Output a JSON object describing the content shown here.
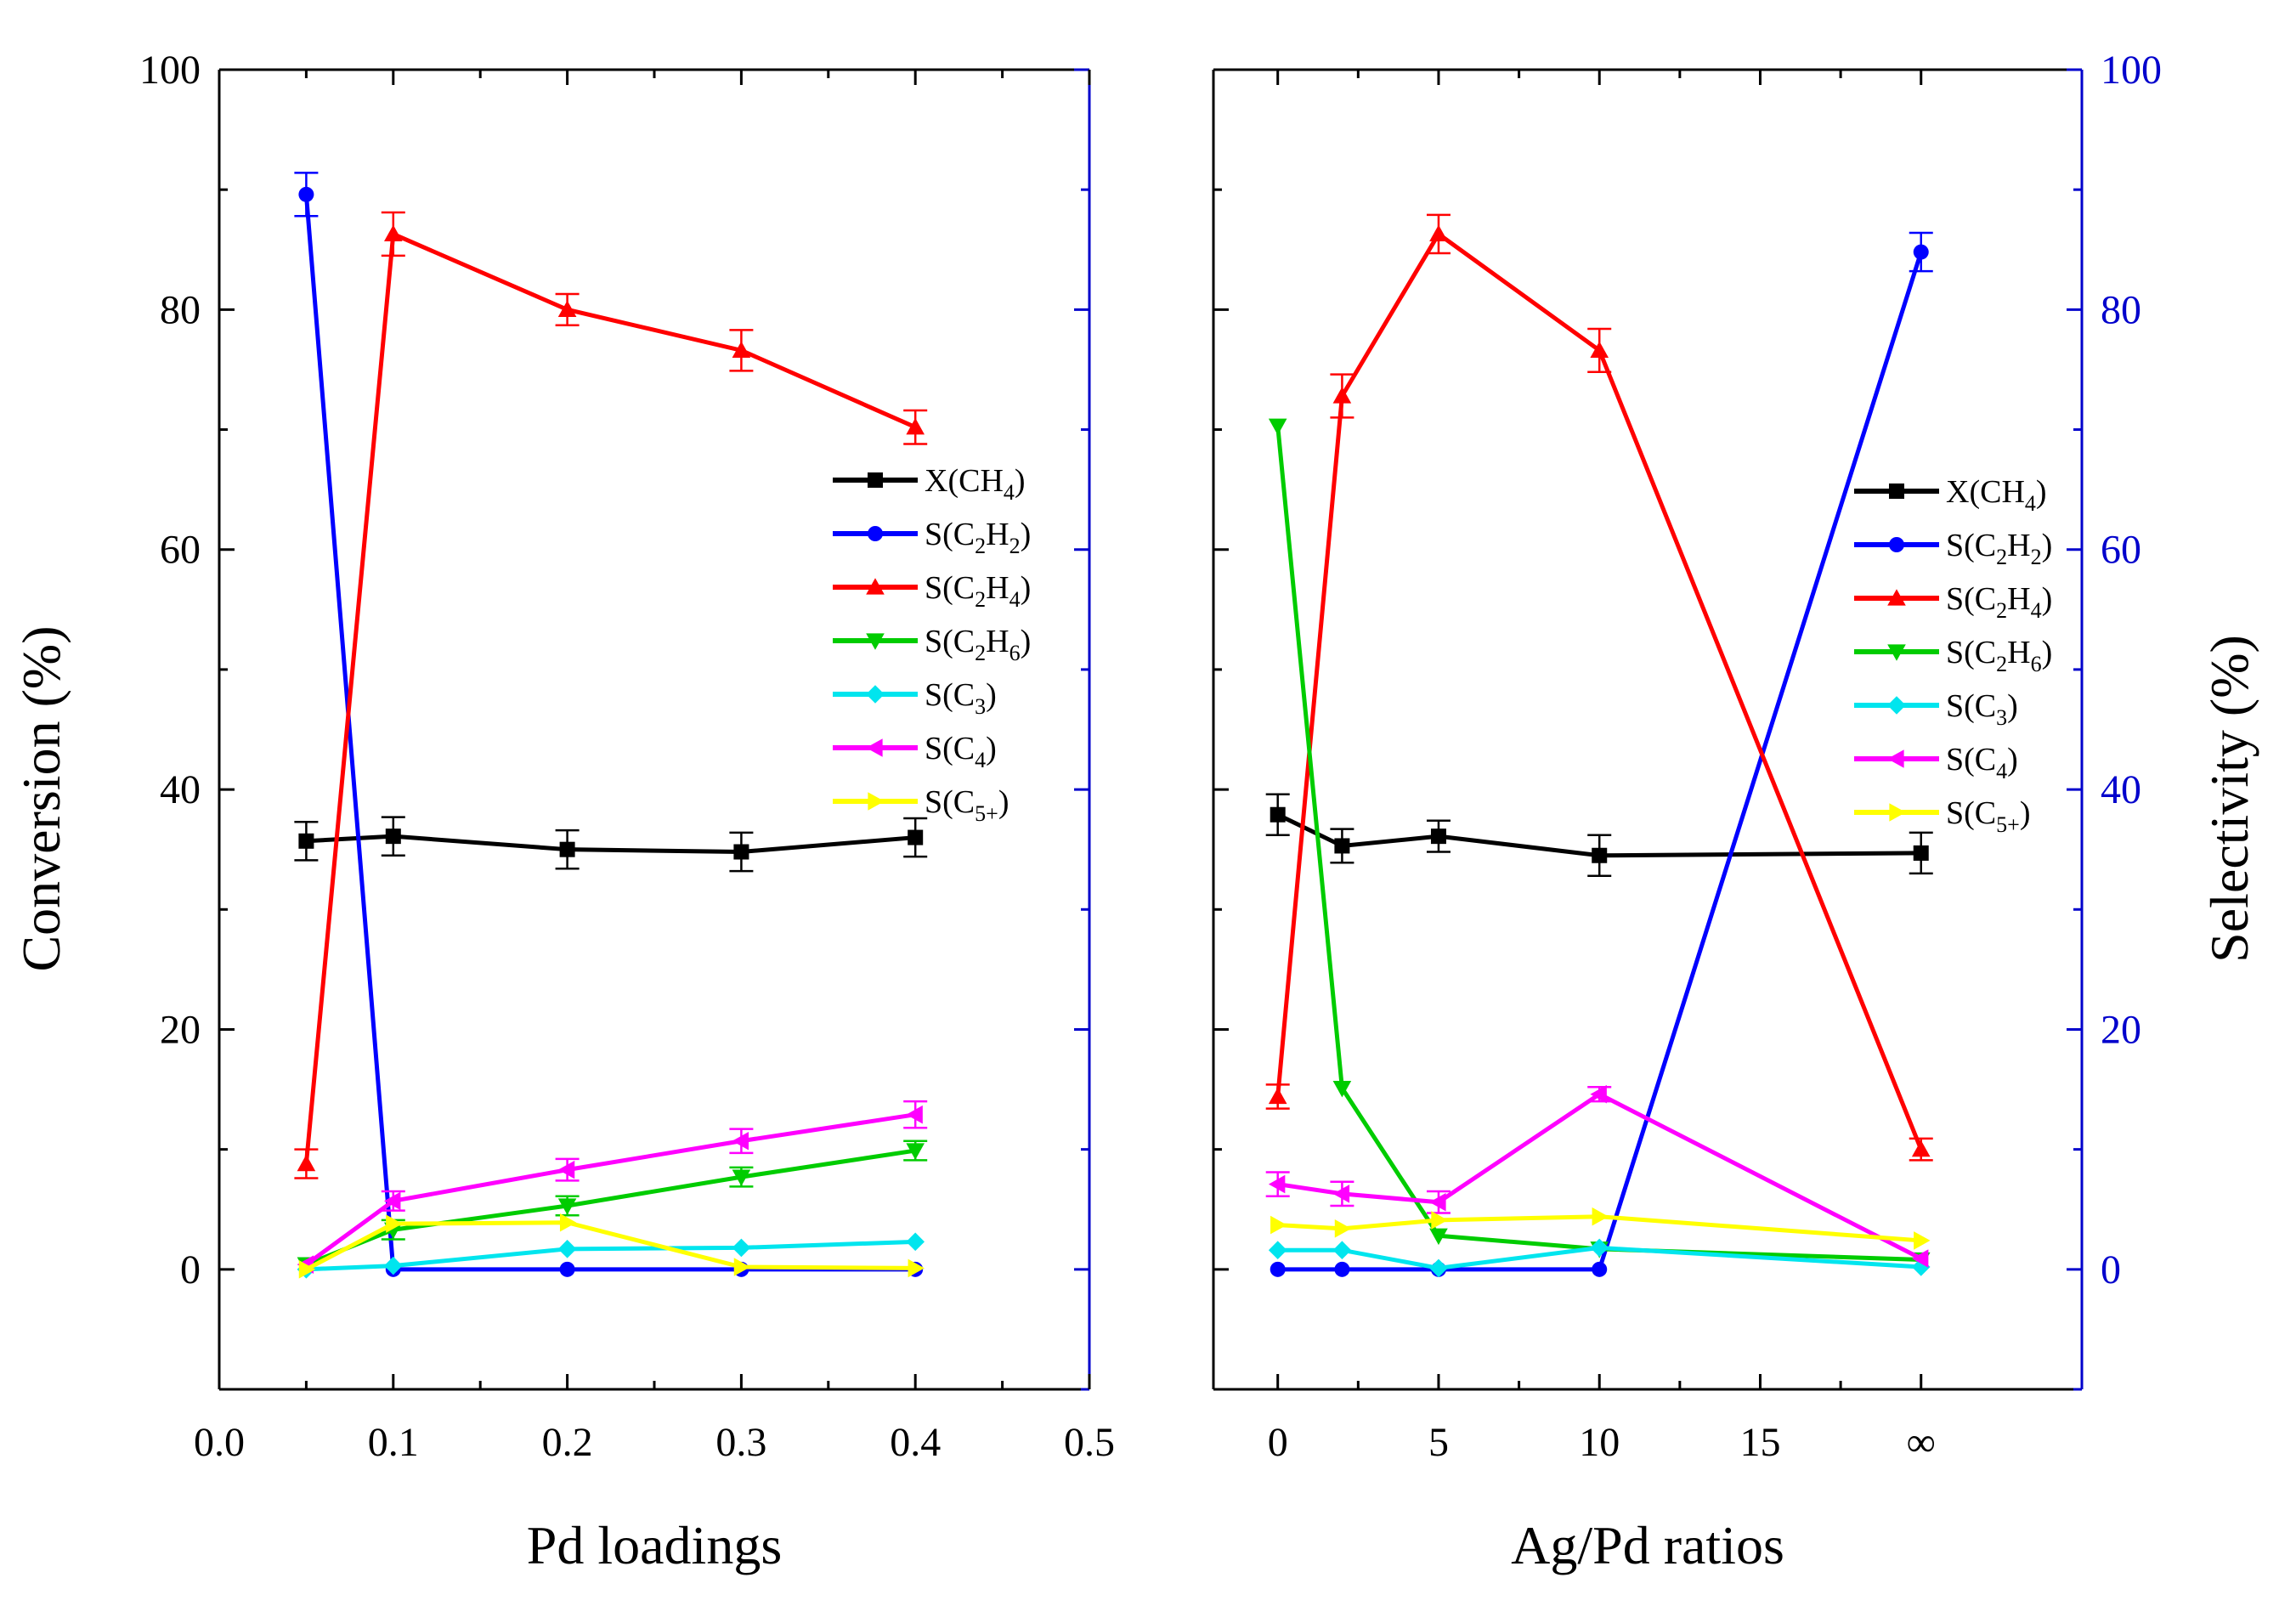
{
  "figure": {
    "left_ylabel": "Conversion (%)",
    "right_ylabel": "Selectivity (%)"
  },
  "colors": {
    "X(CH4)": "#000000",
    "S(C2H2)": "#0000ff",
    "S(C2H4)": "#ff0000",
    "S(C2H6)": "#00cc00",
    "S(C3)": "#00e5ee",
    "S(C4)": "#ff00ff",
    "S(C5+)": "#ffff00",
    "right_axis": "#0000cc"
  },
  "legend": [
    {
      "key": "X(CH4)",
      "base": "X(CH",
      "sub": "4",
      "tail": ")",
      "marker": "square"
    },
    {
      "key": "S(C2H2)",
      "base": "S(C",
      "sub": "2",
      "mid": "H",
      "sub2": "2",
      "tail": ")",
      "marker": "circle"
    },
    {
      "key": "S(C2H4)",
      "base": "S(C",
      "sub": "2",
      "mid": "H",
      "sub2": "4",
      "tail": ")",
      "marker": "triangle-up"
    },
    {
      "key": "S(C2H6)",
      "base": "S(C",
      "sub": "2",
      "mid": "H",
      "sub2": "6",
      "tail": ")",
      "marker": "triangle-down"
    },
    {
      "key": "S(C3)",
      "base": "S(C",
      "sub": "3",
      "tail": ")",
      "marker": "diamond"
    },
    {
      "key": "S(C4)",
      "base": "S(C",
      "sub": "4",
      "tail": ")",
      "marker": "triangle-left"
    },
    {
      "key": "S(C5+)",
      "base": "S(C",
      "sub": "5+",
      "tail": ")",
      "marker": "triangle-right"
    }
  ],
  "chart_data": [
    {
      "type": "line",
      "panel": "left",
      "xlabel": "Pd loadings",
      "ylabel": "Conversion (%)",
      "xlim": [
        0.0,
        0.5
      ],
      "ylim": [
        -10,
        100
      ],
      "xticks": [
        0.0,
        0.1,
        0.2,
        0.3,
        0.4,
        0.5
      ],
      "xtick_labels": [
        "0.0",
        "0.1",
        "0.2",
        "0.3",
        "0.4",
        "0.5"
      ],
      "yticks": [
        0,
        20,
        40,
        60,
        80,
        100
      ],
      "ytick_labels": [
        "0",
        "20",
        "40",
        "60",
        "80",
        "100"
      ],
      "series": [
        {
          "name": "X(CH4)",
          "axis": "left",
          "x": [
            0.05,
            0.1,
            0.2,
            0.3,
            0.4
          ],
          "y": [
            35.7,
            36.1,
            35.0,
            34.8,
            36.0
          ],
          "err": [
            1.6,
            1.6,
            1.6,
            1.6,
            1.6
          ]
        },
        {
          "name": "S(C2H2)",
          "axis": "right",
          "x": [
            0.05,
            0.1,
            0.2,
            0.3,
            0.4
          ],
          "y": [
            89.6,
            0,
            0,
            0,
            0
          ],
          "err": [
            1.8,
            0,
            0,
            0,
            0
          ]
        },
        {
          "name": "S(C2H4)",
          "axis": "right",
          "x": [
            0.05,
            0.1,
            0.2,
            0.3,
            0.4
          ],
          "y": [
            8.8,
            86.3,
            80.0,
            76.6,
            70.2
          ],
          "err": [
            1.2,
            1.8,
            1.3,
            1.7,
            1.4
          ]
        },
        {
          "name": "S(C2H6)",
          "axis": "right",
          "x": [
            0.05,
            0.1,
            0.2,
            0.3,
            0.4
          ],
          "y": [
            0.4,
            3.3,
            5.3,
            7.7,
            9.9
          ],
          "err": [
            0,
            0.8,
            0.8,
            0.8,
            0.8
          ]
        },
        {
          "name": "S(C3)",
          "axis": "right",
          "x": [
            0.05,
            0.1,
            0.2,
            0.3,
            0.4
          ],
          "y": [
            0,
            0.3,
            1.7,
            1.8,
            2.3
          ],
          "err": [
            0,
            0,
            0,
            0,
            0
          ]
        },
        {
          "name": "S(C4)",
          "axis": "right",
          "x": [
            0.05,
            0.1,
            0.2,
            0.3,
            0.4
          ],
          "y": [
            0.4,
            5.7,
            8.3,
            10.7,
            12.9
          ],
          "err": [
            0,
            0.8,
            0.9,
            1.0,
            1.1
          ]
        },
        {
          "name": "S(C5+)",
          "axis": "right",
          "x": [
            0.05,
            0.1,
            0.2,
            0.3,
            0.4
          ],
          "y": [
            0,
            3.8,
            3.9,
            0.2,
            0.1
          ],
          "err": [
            0,
            0,
            0,
            0,
            0
          ]
        }
      ]
    },
    {
      "type": "line",
      "panel": "right",
      "xlabel": "Ag/Pd ratios",
      "ylabel": "Selectivity (%)",
      "xlim": [
        -2,
        25
      ],
      "ylim": [
        -10,
        100
      ],
      "xticks": [
        0,
        5,
        10,
        15,
        20
      ],
      "xtick_labels": [
        "0",
        "5",
        "10",
        "15",
        "∞"
      ],
      "yticks": [
        0,
        20,
        40,
        60,
        80,
        100
      ],
      "ytick_labels": [
        "0",
        "20",
        "40",
        "60",
        "80",
        "100"
      ],
      "series": [
        {
          "name": "X(CH4)",
          "axis": "left",
          "x": [
            0,
            2,
            5,
            10,
            20
          ],
          "y": [
            37.9,
            35.3,
            36.1,
            34.5,
            34.7
          ],
          "err": [
            1.7,
            1.4,
            1.3,
            1.7,
            1.7
          ]
        },
        {
          "name": "S(C2H2)",
          "axis": "right",
          "x": [
            0,
            2,
            5,
            10,
            20
          ],
          "y": [
            0,
            0,
            0,
            0,
            84.8
          ],
          "err": [
            0,
            0,
            0,
            0,
            1.6
          ]
        },
        {
          "name": "S(C2H4)",
          "axis": "right",
          "x": [
            0,
            2,
            5,
            10,
            20
          ],
          "y": [
            14.4,
            72.8,
            86.3,
            76.6,
            10.0
          ],
          "err": [
            1.0,
            1.8,
            1.6,
            1.8,
            0.9
          ]
        },
        {
          "name": "S(C2H6)",
          "axis": "right",
          "x": [
            0,
            2,
            5,
            10,
            20
          ],
          "y": [
            70.3,
            15.1,
            2.8,
            1.7,
            0.8
          ],
          "err": [
            0,
            0,
            0,
            0,
            0
          ]
        },
        {
          "name": "S(C3)",
          "axis": "right",
          "x": [
            0,
            2,
            5,
            10,
            20
          ],
          "y": [
            1.6,
            1.6,
            0.1,
            1.8,
            0.2
          ],
          "err": [
            0,
            0,
            0,
            0,
            0
          ]
        },
        {
          "name": "S(C4)",
          "axis": "right",
          "x": [
            0,
            2,
            5,
            10,
            20
          ],
          "y": [
            7.1,
            6.3,
            5.6,
            14.6,
            0.9
          ],
          "err": [
            1.0,
            1.0,
            0.9,
            0.6,
            0
          ]
        },
        {
          "name": "S(C5+)",
          "axis": "right",
          "x": [
            0,
            2,
            5,
            10,
            20
          ],
          "y": [
            3.7,
            3.4,
            4.1,
            4.4,
            2.4
          ],
          "err": [
            0,
            0,
            0,
            0,
            0
          ]
        }
      ]
    }
  ]
}
